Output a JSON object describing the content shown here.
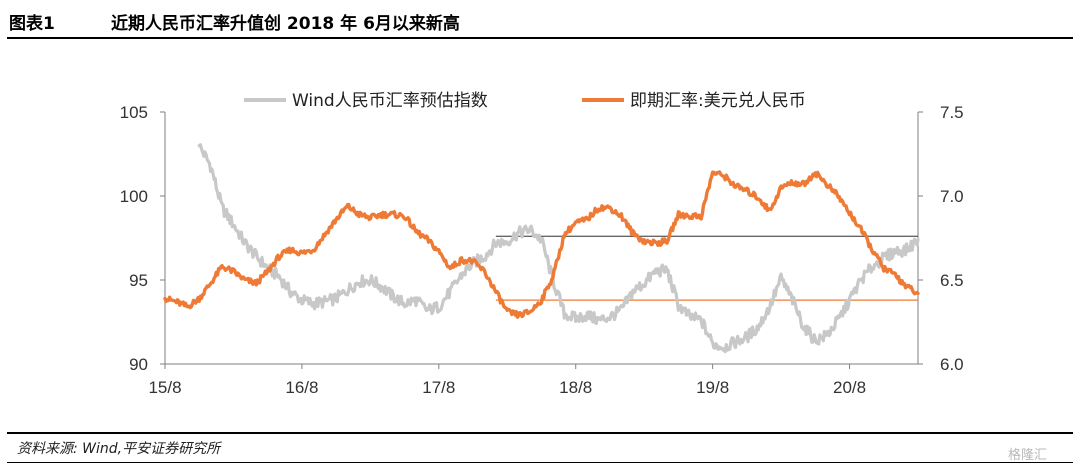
{
  "header": {
    "figure_label": "图表1",
    "title": "近期人民币汇率升值创 2018 年 6月以来新高"
  },
  "footer": {
    "source": "资料来源: Wind,平安证券研究所",
    "watermark": "格隆汇"
  },
  "chart_data": {
    "type": "line",
    "x_range": [
      "2015-08",
      "2021-02"
    ],
    "x_ticks": [
      "15/8",
      "16/8",
      "17/8",
      "18/8",
      "19/8",
      "20/8"
    ],
    "y_left": {
      "ticks": [
        105,
        100,
        95,
        90
      ],
      "range": [
        90,
        105
      ]
    },
    "y_right": {
      "ticks": [
        7.5,
        7.0,
        6.5,
        6.0
      ],
      "range": [
        6.0,
        7.5
      ]
    },
    "legend_position": "top",
    "grid": false,
    "series": [
      {
        "name": "Wind人民币汇率预估指数",
        "axis": "left",
        "color": "#c8c8c8",
        "points": [
          [
            "2015-11",
            103.0
          ],
          [
            "2015-12",
            101.8
          ],
          [
            "2016-01",
            99.3
          ],
          [
            "2016-02",
            98.3
          ],
          [
            "2016-03",
            97.2
          ],
          [
            "2016-04",
            96.4
          ],
          [
            "2016-05",
            95.7
          ],
          [
            "2016-06",
            95.2
          ],
          [
            "2016-07",
            94.3
          ],
          [
            "2016-08",
            93.8
          ],
          [
            "2016-09",
            93.6
          ],
          [
            "2016-10",
            93.7
          ],
          [
            "2016-11",
            93.9
          ],
          [
            "2016-12",
            94.4
          ],
          [
            "2017-01",
            94.9
          ],
          [
            "2017-02",
            95.0
          ],
          [
            "2017-03",
            94.6
          ],
          [
            "2017-04",
            94.0
          ],
          [
            "2017-05",
            93.6
          ],
          [
            "2017-06",
            93.8
          ],
          [
            "2017-07",
            93.2
          ],
          [
            "2017-08",
            93.4
          ],
          [
            "2017-09",
            94.3
          ],
          [
            "2017-10",
            95.3
          ],
          [
            "2017-11",
            96.0
          ],
          [
            "2017-12",
            96.4
          ],
          [
            "2018-01",
            97.2
          ],
          [
            "2018-02",
            97.3
          ],
          [
            "2018-03",
            97.8
          ],
          [
            "2018-04",
            98.0
          ],
          [
            "2018-05",
            97.4
          ],
          [
            "2018-06",
            95.0
          ],
          [
            "2018-07",
            93.0
          ],
          [
            "2018-08",
            92.7
          ],
          [
            "2018-09",
            92.9
          ],
          [
            "2018-10",
            92.6
          ],
          [
            "2018-11",
            92.8
          ],
          [
            "2018-12",
            93.2
          ],
          [
            "2019-01",
            94.3
          ],
          [
            "2019-02",
            94.8
          ],
          [
            "2019-03",
            95.5
          ],
          [
            "2019-04",
            95.6
          ],
          [
            "2019-05",
            93.5
          ],
          [
            "2019-06",
            92.8
          ],
          [
            "2019-07",
            92.6
          ],
          [
            "2019-08",
            91.2
          ],
          [
            "2019-09",
            91.0
          ],
          [
            "2019-10",
            91.3
          ],
          [
            "2019-11",
            91.6
          ],
          [
            "2019-12",
            92.2
          ],
          [
            "2020-01",
            93.4
          ],
          [
            "2020-02",
            95.1
          ],
          [
            "2020-03",
            93.8
          ],
          [
            "2020-04",
            92.2
          ],
          [
            "2020-05",
            91.4
          ],
          [
            "2020-06",
            91.7
          ],
          [
            "2020-07",
            92.6
          ],
          [
            "2020-08",
            93.8
          ],
          [
            "2020-09",
            95.0
          ],
          [
            "2020-10",
            95.8
          ],
          [
            "2020-11",
            96.3
          ],
          [
            "2020-12",
            96.7
          ],
          [
            "2021-01",
            96.8
          ],
          [
            "2021-02",
            97.4
          ]
        ]
      },
      {
        "name": "即期汇率:美元兑人民币",
        "axis": "right",
        "color": "#ee7a35",
        "points": [
          [
            "2015-08",
            6.39
          ],
          [
            "2015-09",
            6.37
          ],
          [
            "2015-10",
            6.34
          ],
          [
            "2015-11",
            6.39
          ],
          [
            "2015-12",
            6.48
          ],
          [
            "2016-01",
            6.58
          ],
          [
            "2016-02",
            6.55
          ],
          [
            "2016-03",
            6.5
          ],
          [
            "2016-04",
            6.48
          ],
          [
            "2016-05",
            6.55
          ],
          [
            "2016-06",
            6.64
          ],
          [
            "2016-07",
            6.68
          ],
          [
            "2016-08",
            6.66
          ],
          [
            "2016-09",
            6.68
          ],
          [
            "2016-10",
            6.77
          ],
          [
            "2016-11",
            6.86
          ],
          [
            "2016-12",
            6.94
          ],
          [
            "2017-01",
            6.89
          ],
          [
            "2017-02",
            6.87
          ],
          [
            "2017-03",
            6.89
          ],
          [
            "2017-04",
            6.89
          ],
          [
            "2017-05",
            6.88
          ],
          [
            "2017-06",
            6.79
          ],
          [
            "2017-07",
            6.74
          ],
          [
            "2017-08",
            6.67
          ],
          [
            "2017-09",
            6.57
          ],
          [
            "2017-10",
            6.62
          ],
          [
            "2017-11",
            6.61
          ],
          [
            "2017-12",
            6.55
          ],
          [
            "2018-01",
            6.43
          ],
          [
            "2018-02",
            6.31
          ],
          [
            "2018-03",
            6.29
          ],
          [
            "2018-04",
            6.31
          ],
          [
            "2018-05",
            6.38
          ],
          [
            "2018-06",
            6.52
          ],
          [
            "2018-07",
            6.77
          ],
          [
            "2018-08",
            6.84
          ],
          [
            "2018-09",
            6.86
          ],
          [
            "2018-10",
            6.93
          ],
          [
            "2018-11",
            6.93
          ],
          [
            "2018-12",
            6.88
          ],
          [
            "2019-01",
            6.78
          ],
          [
            "2019-02",
            6.73
          ],
          [
            "2019-03",
            6.72
          ],
          [
            "2019-04",
            6.73
          ],
          [
            "2019-05",
            6.89
          ],
          [
            "2019-06",
            6.88
          ],
          [
            "2019-07",
            6.88
          ],
          [
            "2019-08",
            7.14
          ],
          [
            "2019-09",
            7.12
          ],
          [
            "2019-10",
            7.06
          ],
          [
            "2019-11",
            7.03
          ],
          [
            "2019-12",
            6.99
          ],
          [
            "2020-01",
            6.91
          ],
          [
            "2020-02",
            7.05
          ],
          [
            "2020-03",
            7.08
          ],
          [
            "2020-04",
            7.07
          ],
          [
            "2020-05",
            7.14
          ],
          [
            "2020-06",
            7.07
          ],
          [
            "2020-07",
            7.0
          ],
          [
            "2020-08",
            6.9
          ],
          [
            "2020-09",
            6.8
          ],
          [
            "2020-10",
            6.68
          ],
          [
            "2020-11",
            6.57
          ],
          [
            "2020-12",
            6.53
          ],
          [
            "2021-01",
            6.46
          ],
          [
            "2021-02",
            6.42
          ]
        ]
      }
    ],
    "reference_lines": [
      {
        "axis": "left",
        "value": 97.6,
        "from": "2018-01",
        "to": "2021-02",
        "color": "#666666"
      },
      {
        "axis": "right",
        "value": 6.38,
        "from": "2018-01",
        "to": "2021-02",
        "color": "#ee7a35"
      }
    ]
  }
}
